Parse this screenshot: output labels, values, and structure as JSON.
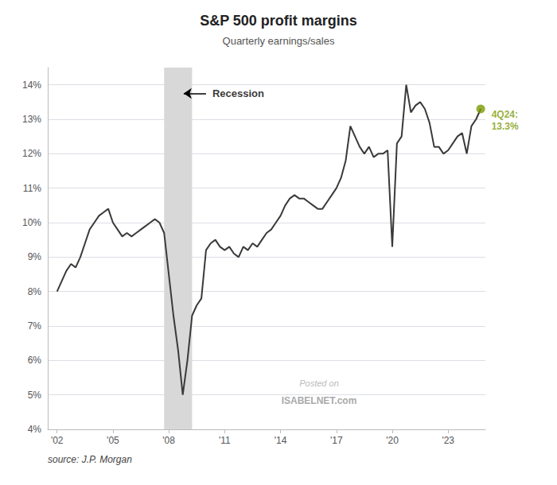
{
  "chart_data": {
    "type": "line",
    "title": "S&P 500 profit margins",
    "subtitle": "Quarterly earnings/sales",
    "source": "source: J.P. Morgan",
    "watermark": [
      "Posted on",
      "ISABELNET.com"
    ],
    "color": "#3a3a3a",
    "x": [
      2002.0,
      2002.25,
      2002.5,
      2002.75,
      2003.0,
      2003.25,
      2003.5,
      2003.75,
      2004.0,
      2004.25,
      2004.5,
      2004.75,
      2005.0,
      2005.25,
      2005.5,
      2005.75,
      2006.0,
      2006.25,
      2006.5,
      2006.75,
      2007.0,
      2007.25,
      2007.5,
      2007.75,
      2008.0,
      2008.25,
      2008.5,
      2008.75,
      2009.0,
      2009.25,
      2009.5,
      2009.75,
      2010.0,
      2010.25,
      2010.5,
      2010.75,
      2011.0,
      2011.25,
      2011.5,
      2011.75,
      2012.0,
      2012.25,
      2012.5,
      2012.75,
      2013.0,
      2013.25,
      2013.5,
      2013.75,
      2014.0,
      2014.25,
      2014.5,
      2014.75,
      2015.0,
      2015.25,
      2015.5,
      2015.75,
      2016.0,
      2016.25,
      2016.5,
      2016.75,
      2017.0,
      2017.25,
      2017.5,
      2017.75,
      2018.0,
      2018.25,
      2018.5,
      2018.75,
      2019.0,
      2019.25,
      2019.5,
      2019.75,
      2020.0,
      2020.25,
      2020.5,
      2020.75,
      2021.0,
      2021.25,
      2021.5,
      2021.75,
      2022.0,
      2022.25,
      2022.5,
      2022.75,
      2023.0,
      2023.25,
      2023.5,
      2023.75,
      2024.0,
      2024.25,
      2024.5,
      2024.75
    ],
    "values": [
      0.08,
      0.083,
      0.086,
      0.088,
      0.087,
      0.09,
      0.094,
      0.098,
      0.1,
      0.102,
      0.103,
      0.104,
      0.1,
      0.098,
      0.096,
      0.097,
      0.096,
      0.097,
      0.098,
      0.099,
      0.1,
      0.101,
      0.1,
      0.097,
      0.085,
      0.073,
      0.063,
      0.05,
      0.06,
      0.073,
      0.076,
      0.078,
      0.092,
      0.094,
      0.095,
      0.093,
      0.092,
      0.093,
      0.091,
      0.09,
      0.093,
      0.092,
      0.094,
      0.093,
      0.095,
      0.097,
      0.098,
      0.1,
      0.102,
      0.105,
      0.107,
      0.108,
      0.107,
      0.107,
      0.106,
      0.105,
      0.104,
      0.104,
      0.106,
      0.108,
      0.11,
      0.113,
      0.118,
      0.128,
      0.125,
      0.122,
      0.12,
      0.122,
      0.119,
      0.12,
      0.12,
      0.121,
      0.093,
      0.123,
      0.125,
      0.14,
      0.132,
      0.134,
      0.135,
      0.133,
      0.129,
      0.122,
      0.122,
      0.12,
      0.121,
      0.123,
      0.125,
      0.126,
      0.12,
      0.128,
      0.13,
      0.133
    ],
    "xlim": [
      2001.5,
      2025.0
    ],
    "xticks": [
      {
        "value": 2002,
        "label": "'02"
      },
      {
        "value": 2005,
        "label": "'05"
      },
      {
        "value": 2008,
        "label": "'08"
      },
      {
        "value": 2011,
        "label": "'11"
      },
      {
        "value": 2014,
        "label": "'14"
      },
      {
        "value": 2017,
        "label": "'17"
      },
      {
        "value": 2020,
        "label": "'20"
      },
      {
        "value": 2023,
        "label": "'23"
      }
    ],
    "ylim": [
      0.04,
      0.145
    ],
    "yticks": [
      {
        "value": 0.04,
        "label": "4%"
      },
      {
        "value": 0.05,
        "label": "5%"
      },
      {
        "value": 0.06,
        "label": "6%"
      },
      {
        "value": 0.07,
        "label": "7%"
      },
      {
        "value": 0.08,
        "label": "8%"
      },
      {
        "value": 0.09,
        "label": "9%"
      },
      {
        "value": 0.1,
        "label": "10%"
      },
      {
        "value": 0.11,
        "label": "11%"
      },
      {
        "value": 0.12,
        "label": "12%"
      },
      {
        "value": 0.13,
        "label": "13%"
      },
      {
        "value": 0.14,
        "label": "14%"
      }
    ],
    "grid": true,
    "shaded": [
      {
        "start": 2007.75,
        "end": 2009.25,
        "color": "#d8d8d8"
      }
    ],
    "annotations": [
      {
        "text": "Recession",
        "x": 2010.0,
        "y": 0.1375,
        "arrow_to_x": 2008.8
      },
      {
        "text": "4Q24:\n13.3%",
        "x": 2024.75,
        "y": 0.133,
        "color": "#7a9a01",
        "marker": "circle"
      }
    ]
  }
}
